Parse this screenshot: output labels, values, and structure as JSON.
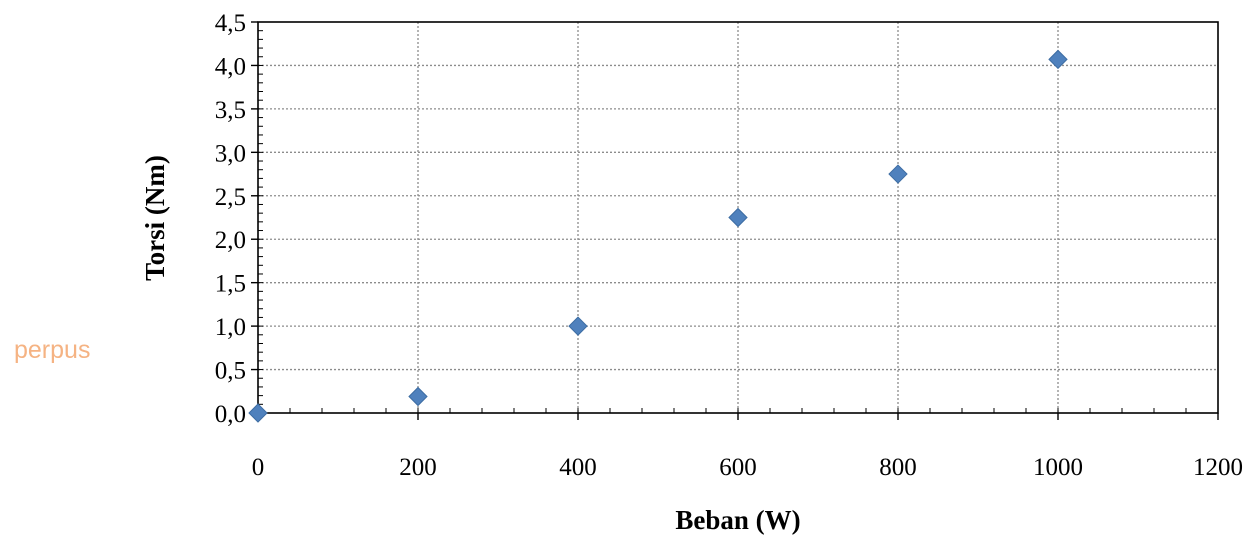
{
  "watermark": "perpus",
  "chart_data": {
    "type": "scatter",
    "title": "",
    "xlabel": "Beban (W)",
    "ylabel": "Torsi (Nm)",
    "xlim": [
      0,
      1200
    ],
    "ylim": [
      0,
      4.5
    ],
    "x_ticks": [
      "0",
      "200",
      "400",
      "600",
      "800",
      "1000",
      "1200"
    ],
    "y_ticks": [
      "0,0",
      "0,5",
      "1,0",
      "1,5",
      "2,0",
      "2,5",
      "3,0",
      "3,5",
      "4,0",
      "4,5"
    ],
    "grid": true,
    "legend": "none",
    "marker": "diamond",
    "marker_color": "#4f81bd",
    "series": [
      {
        "x": [
          0,
          200,
          400,
          600,
          800,
          1000
        ],
        "y": [
          0.0,
          0.19,
          1.0,
          2.25,
          2.75,
          4.07
        ]
      }
    ]
  }
}
